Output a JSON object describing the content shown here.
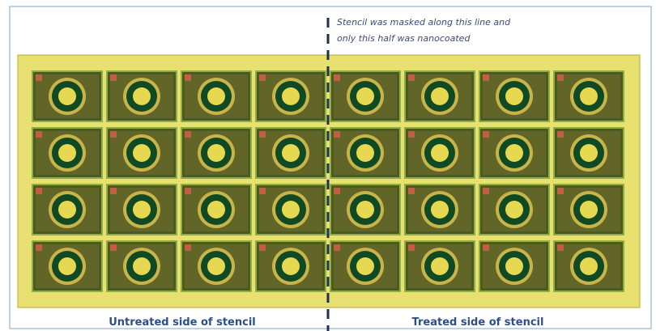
{
  "annotation": {
    "lines": [
      "Stencil was masked along this line and",
      "only this half was nanocoated"
    ]
  },
  "labels": {
    "left": "Untreated side of stencil",
    "right": "Treated side of stencil"
  }
}
